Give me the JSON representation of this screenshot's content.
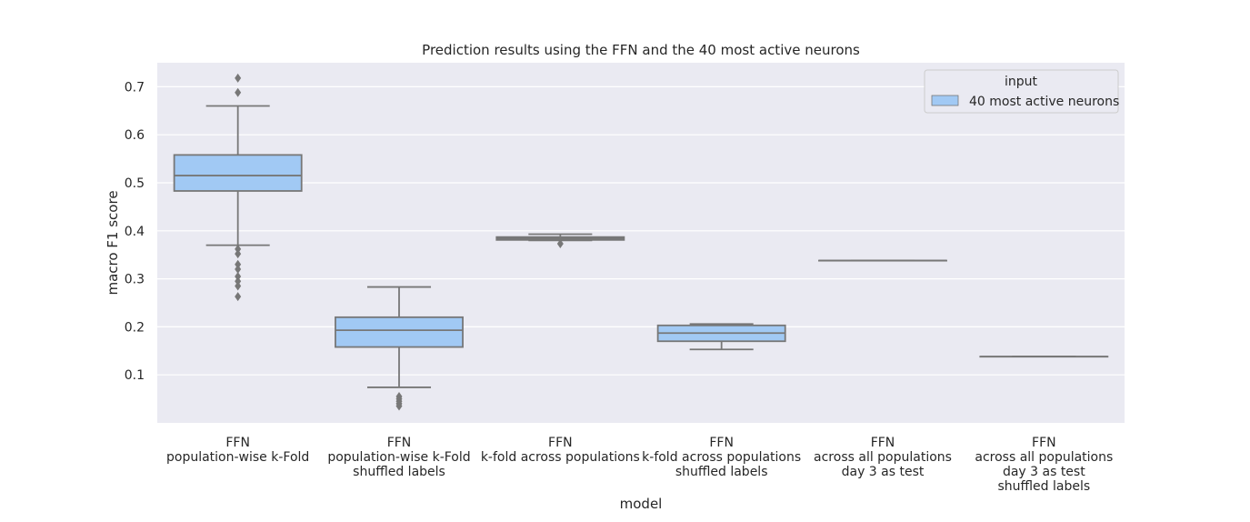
{
  "chart_data": {
    "type": "box",
    "title": "Prediction results using the FFN and the 40 most active neurons",
    "xlabel": "model",
    "ylabel": "macro F1 score",
    "ylim": [
      0.0,
      0.75
    ],
    "yticks": [
      0.1,
      0.2,
      0.3,
      0.4,
      0.5,
      0.6,
      0.7
    ],
    "grid": true,
    "legend": {
      "title": "input",
      "placement": "top-right",
      "entries": [
        {
          "label": "40 most active neurons",
          "color": "#a1c9f4"
        }
      ]
    },
    "colors": {
      "background": "#eaeaf2",
      "box_fill": "#a1c9f4",
      "box_line": "#777777",
      "grid": "#ffffff"
    },
    "categories": [
      [
        "FFN",
        "population-wise k-Fold"
      ],
      [
        "FFN",
        "population-wise k-Fold",
        "shuffled labels"
      ],
      [
        "FFN",
        "k-fold across populations"
      ],
      [
        "FFN",
        "k-fold across populations",
        "shuffled labels"
      ],
      [
        "FFN",
        "across all populations",
        "day 3 as test"
      ],
      [
        "FFN",
        "across all populations",
        "day 3 as test",
        "shuffled labels"
      ]
    ],
    "boxes": [
      {
        "whisker_low": 0.37,
        "q1": 0.483,
        "median": 0.515,
        "q3": 0.558,
        "whisker_high": 0.66,
        "outliers": [
          0.718,
          0.688,
          0.362,
          0.352,
          0.33,
          0.32,
          0.305,
          0.295,
          0.285,
          0.263
        ]
      },
      {
        "whisker_low": 0.074,
        "q1": 0.158,
        "median": 0.193,
        "q3": 0.22,
        "whisker_high": 0.283,
        "outliers": [
          0.055,
          0.05,
          0.045,
          0.04,
          0.035
        ]
      },
      {
        "whisker_low": 0.38,
        "q1": 0.381,
        "median": 0.384,
        "q3": 0.387,
        "whisker_high": 0.393,
        "outliers": [
          0.373
        ]
      },
      {
        "whisker_low": 0.153,
        "q1": 0.17,
        "median": 0.187,
        "q3": 0.203,
        "whisker_high": 0.206,
        "outliers": []
      },
      {
        "whisker_low": 0.338,
        "q1": 0.338,
        "median": 0.338,
        "q3": 0.338,
        "whisker_high": 0.338,
        "outliers": []
      },
      {
        "whisker_low": 0.138,
        "q1": 0.138,
        "median": 0.138,
        "q3": 0.138,
        "whisker_high": 0.138,
        "outliers": []
      }
    ]
  }
}
